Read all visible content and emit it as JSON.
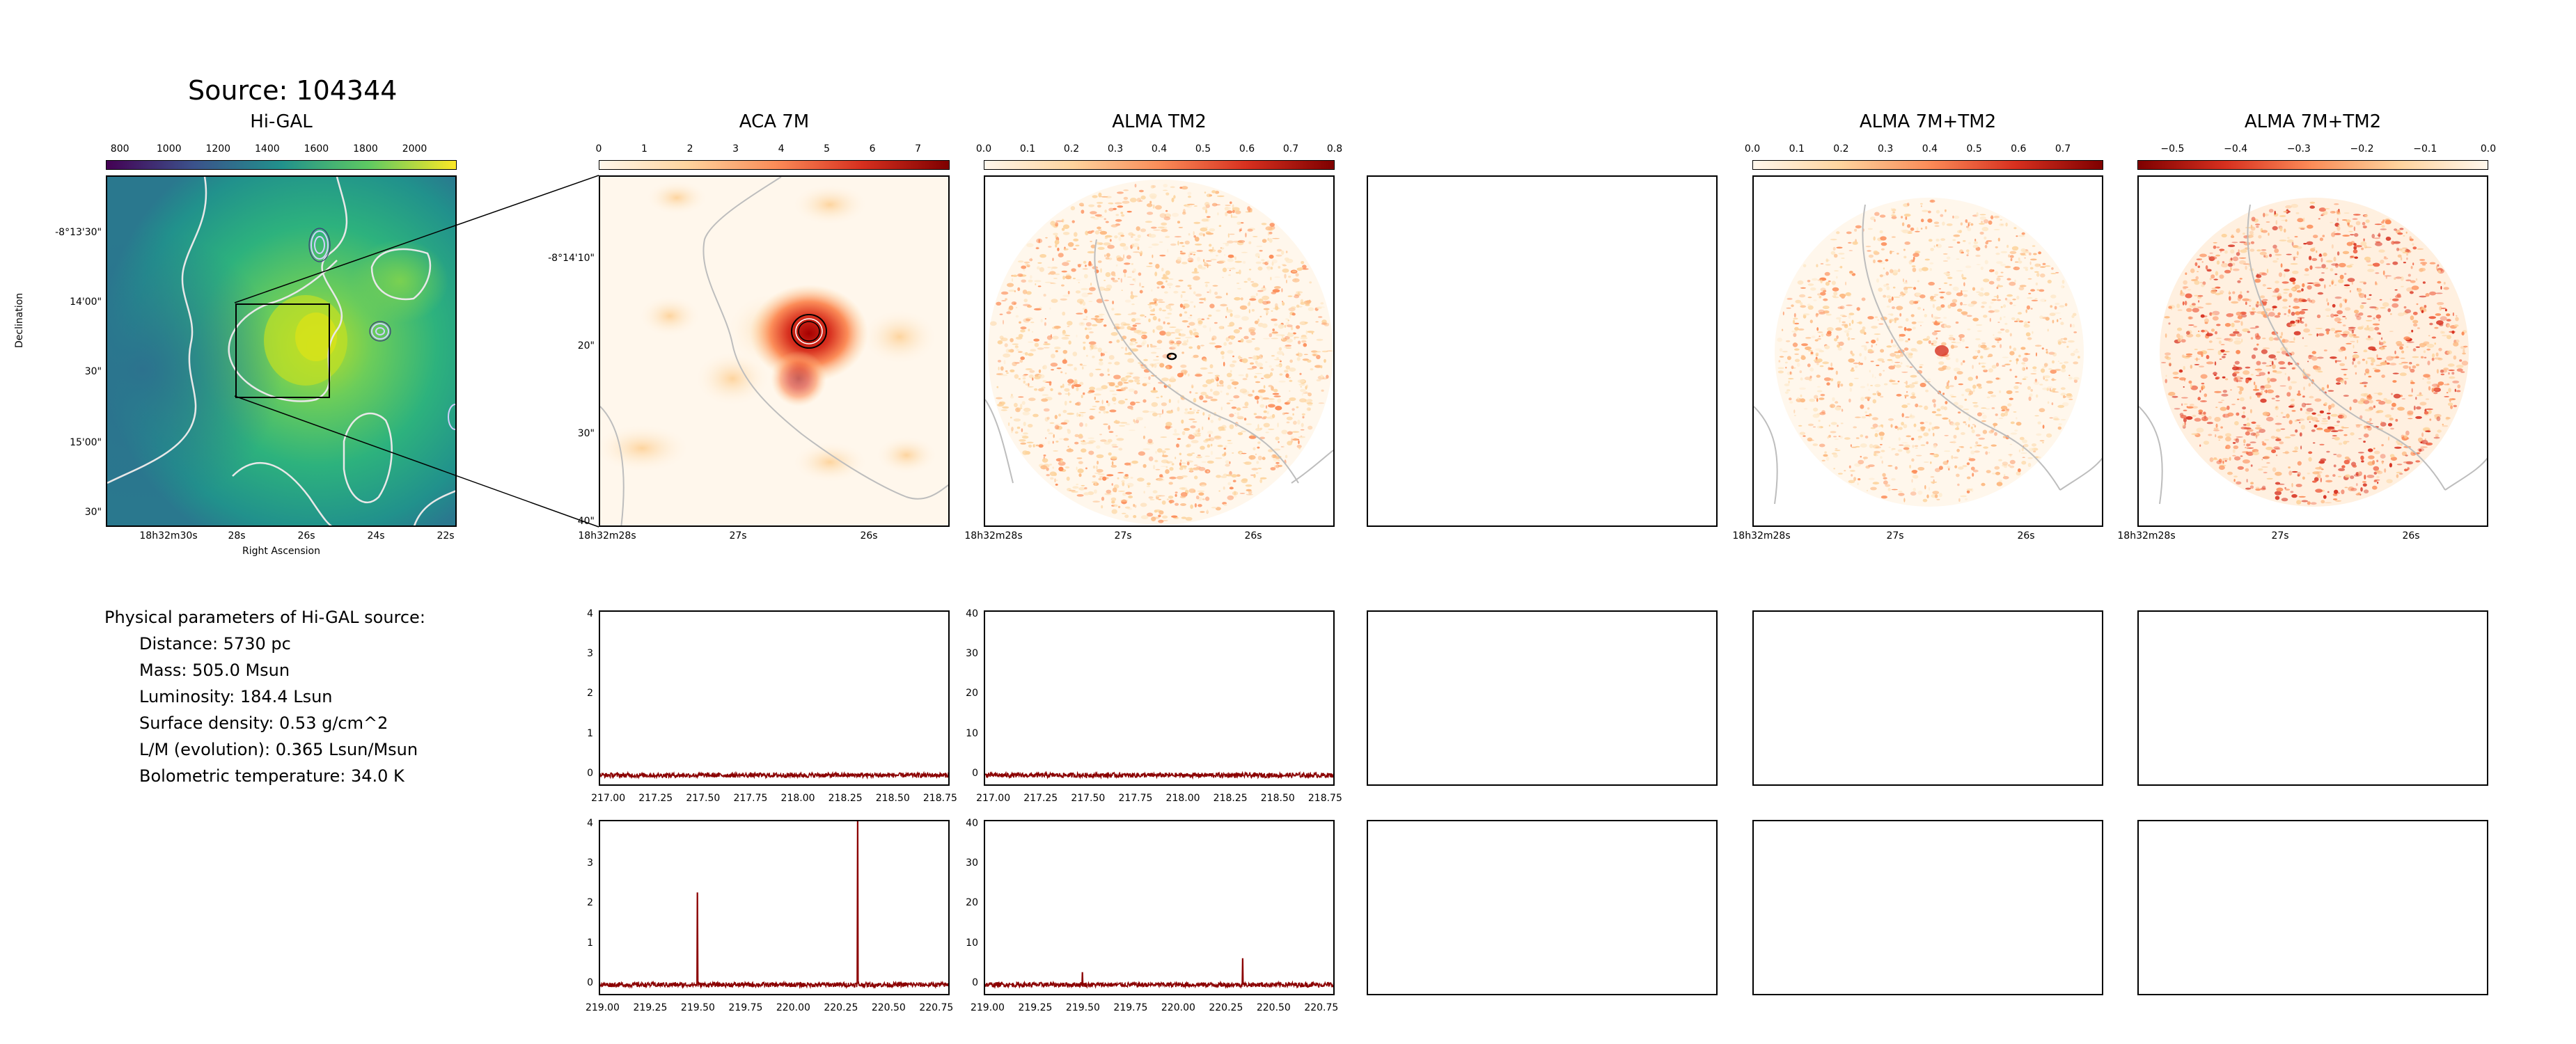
{
  "source": {
    "title": "Source: 104344"
  },
  "panels": {
    "higal": {
      "title": "Hi-GAL",
      "colorbar_ticks": [
        "800",
        "1000",
        "1200",
        "1400",
        "1600",
        "1800",
        "2000"
      ],
      "ra_ticks": [
        "18h32m30s",
        "28s",
        "26s",
        "24s",
        "22s"
      ],
      "dec_ticks": [
        "-8°13'30\"",
        "14'00\"",
        "30\"",
        "15'00\"",
        "30\""
      ],
      "xlabel": "Right Ascension",
      "ylabel": "Declination",
      "colormap": "viridis"
    },
    "aca7m": {
      "title": "ACA 7M",
      "colorbar_ticks": [
        "0",
        "1",
        "2",
        "3",
        "4",
        "5",
        "6",
        "7"
      ],
      "ra_ticks": [
        "18h32m28s",
        "27s",
        "26s"
      ],
      "dec_ticks": [
        "-8°14'10\"",
        "20\"",
        "30\"",
        "40\""
      ],
      "colormap": "OrRd"
    },
    "tm2": {
      "title": "ALMA TM2",
      "colorbar_ticks": [
        "0.0",
        "0.1",
        "0.2",
        "0.3",
        "0.4",
        "0.5",
        "0.6",
        "0.7",
        "0.8"
      ],
      "ra_ticks": [
        "18h32m28s",
        "27s",
        "26s"
      ],
      "colormap": "OrRd"
    },
    "combo1": {
      "title": "ALMA 7M+TM2",
      "colorbar_ticks": [
        "0.0",
        "0.1",
        "0.2",
        "0.3",
        "0.4",
        "0.5",
        "0.6",
        "0.7"
      ],
      "ra_ticks": [
        "18h32m28s",
        "27s",
        "26s"
      ],
      "colormap": "OrRd"
    },
    "combo2": {
      "title": "ALMA 7M+TM2",
      "colorbar_ticks": [
        "−0.5",
        "−0.4",
        "−0.3",
        "−0.2",
        "−0.1",
        "0.0"
      ],
      "ra_ticks": [
        "18h32m28s",
        "27s",
        "26s"
      ],
      "colormap": "OrRd_r"
    }
  },
  "params": {
    "heading": "Physical parameters of Hi-GAL source:",
    "distance": "Distance: 5730 pc",
    "mass": "Mass: 505.0 Msun",
    "luminosity": "Luminosity: 184.4 Lsun",
    "surface_density": "Surface density: 0.53 g/cm^2",
    "lm": "L/M (evolution): 0.365 Lsun/Msun",
    "tbol": "Bolometric temperature: 34.0 K"
  },
  "chart_data": [
    {
      "type": "line",
      "panel": "ACA 7M spectrum (upper sideband)",
      "x_ticks": [
        "217.00",
        "217.25",
        "217.50",
        "217.75",
        "218.00",
        "218.25",
        "218.50",
        "218.75"
      ],
      "y_ticks": [
        "0",
        "1",
        "2",
        "3",
        "4"
      ],
      "xlim": [
        216.95,
        218.8
      ],
      "ylim": [
        -0.3,
        4.1
      ],
      "line_color": "#8b0000",
      "noise_level": 0.06,
      "peaks": []
    },
    {
      "type": "line",
      "panel": "ALMA TM2 spectrum (upper sideband)",
      "x_ticks": [
        "217.00",
        "217.25",
        "217.50",
        "217.75",
        "218.00",
        "218.25",
        "218.50",
        "218.75"
      ],
      "y_ticks": [
        "0",
        "10",
        "20",
        "30",
        "40"
      ],
      "xlim": [
        216.95,
        218.8
      ],
      "ylim": [
        -3,
        41
      ],
      "line_color": "#8b0000",
      "noise_level": 0.6,
      "peaks": []
    },
    {
      "type": "line",
      "panel": "ACA 7M spectrum (lower sideband)",
      "x_ticks": [
        "219.00",
        "219.25",
        "219.50",
        "219.75",
        "220.00",
        "220.25",
        "220.50",
        "220.75"
      ],
      "y_ticks": [
        "0",
        "1",
        "2",
        "3",
        "4"
      ],
      "xlim": [
        218.98,
        220.82
      ],
      "ylim": [
        -0.3,
        4.1
      ],
      "line_color": "#8b0000",
      "noise_level": 0.06,
      "peaks": [
        {
          "x": 219.49,
          "y": 2.3
        },
        {
          "x": 220.33,
          "y": 4.1
        }
      ]
    },
    {
      "type": "line",
      "panel": "ALMA TM2 spectrum (lower sideband)",
      "x_ticks": [
        "219.00",
        "219.25",
        "219.50",
        "219.75",
        "220.00",
        "220.25",
        "220.50",
        "220.75"
      ],
      "y_ticks": [
        "0",
        "10",
        "20",
        "30",
        "40"
      ],
      "xlim": [
        218.98,
        220.82
      ],
      "ylim": [
        -3,
        41
      ],
      "line_color": "#8b0000",
      "noise_level": 0.6,
      "peaks": [
        {
          "x": 219.49,
          "y": 3.0
        },
        {
          "x": 220.33,
          "y": 6.5
        }
      ]
    }
  ]
}
